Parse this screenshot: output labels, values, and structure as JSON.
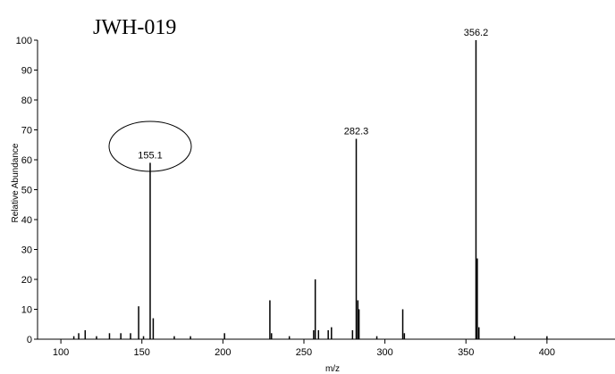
{
  "chart_data": {
    "type": "bar",
    "title": "JWH-019",
    "x_label": "m/z",
    "y_label": "Relative Abundance",
    "x": [
      108,
      111,
      115,
      122,
      130,
      137,
      143,
      148,
      151,
      155.1,
      157,
      170,
      180,
      201,
      229,
      230,
      241,
      256,
      257,
      259,
      265,
      267,
      280,
      282.3,
      283.3,
      284,
      295,
      311,
      312,
      356.2,
      357,
      358,
      380,
      400
    ],
    "values": [
      1,
      2,
      3,
      1,
      2,
      2,
      2,
      11,
      1,
      59,
      7,
      1,
      1,
      2,
      13,
      2,
      1,
      3,
      20,
      3,
      3,
      4,
      3,
      67,
      13,
      10,
      1,
      10,
      2,
      100,
      27,
      4,
      1,
      1
    ],
    "peak_labels": [
      "155.1",
      "282.3",
      "356.2"
    ],
    "color": "#000000",
    "xlim": [
      85.6,
      442
    ],
    "xticks": [
      100,
      150,
      200,
      250,
      300,
      350,
      400
    ],
    "ylim": [
      0,
      100
    ],
    "yticks": [
      0,
      10,
      20,
      30,
      40,
      50,
      60,
      70,
      80,
      90,
      100
    ]
  }
}
